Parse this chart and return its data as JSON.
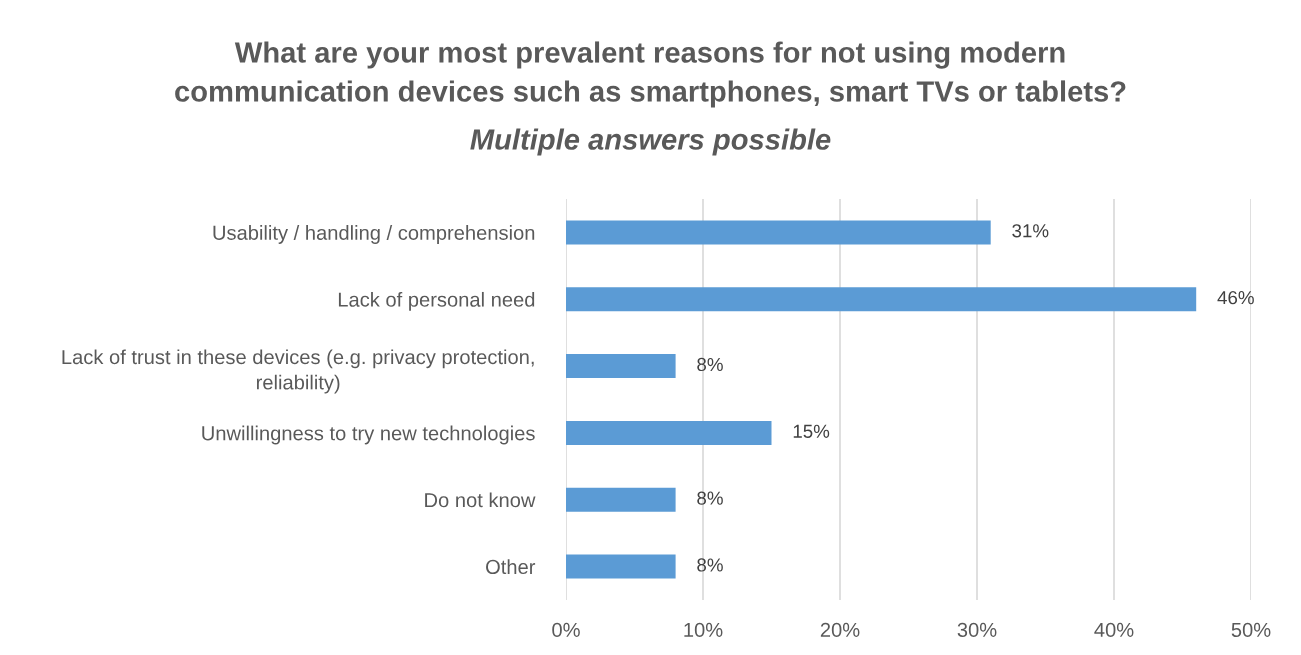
{
  "chart_data": {
    "type": "bar",
    "orientation": "horizontal",
    "title": "What are your most prevalent reasons for not using modern communication devices such as smartphones, smart TVs or tablets?",
    "subtitle": "Multiple answers possible",
    "categories": [
      "Usability / handling / comprehension",
      "Lack of personal need",
      "Lack of trust in these devices (e.g. privacy protection, reliability)",
      "Unwillingness to try new technologies",
      "Do not know",
      "Other"
    ],
    "values": [
      31,
      46,
      8,
      15,
      8,
      8
    ],
    "value_labels": [
      "31%",
      "46%",
      "8%",
      "15%",
      "8%",
      "8%"
    ],
    "color": "#5b9bd5",
    "xlim": [
      0,
      50
    ],
    "xticks": [
      {
        "value": 0,
        "label": "0%"
      },
      {
        "value": 10,
        "label": "10%"
      },
      {
        "value": 20,
        "label": "20%"
      },
      {
        "value": 30,
        "label": "30%"
      },
      {
        "value": 40,
        "label": "40%"
      },
      {
        "value": 50,
        "label": "50%"
      }
    ],
    "grid": "x",
    "legend": false
  }
}
